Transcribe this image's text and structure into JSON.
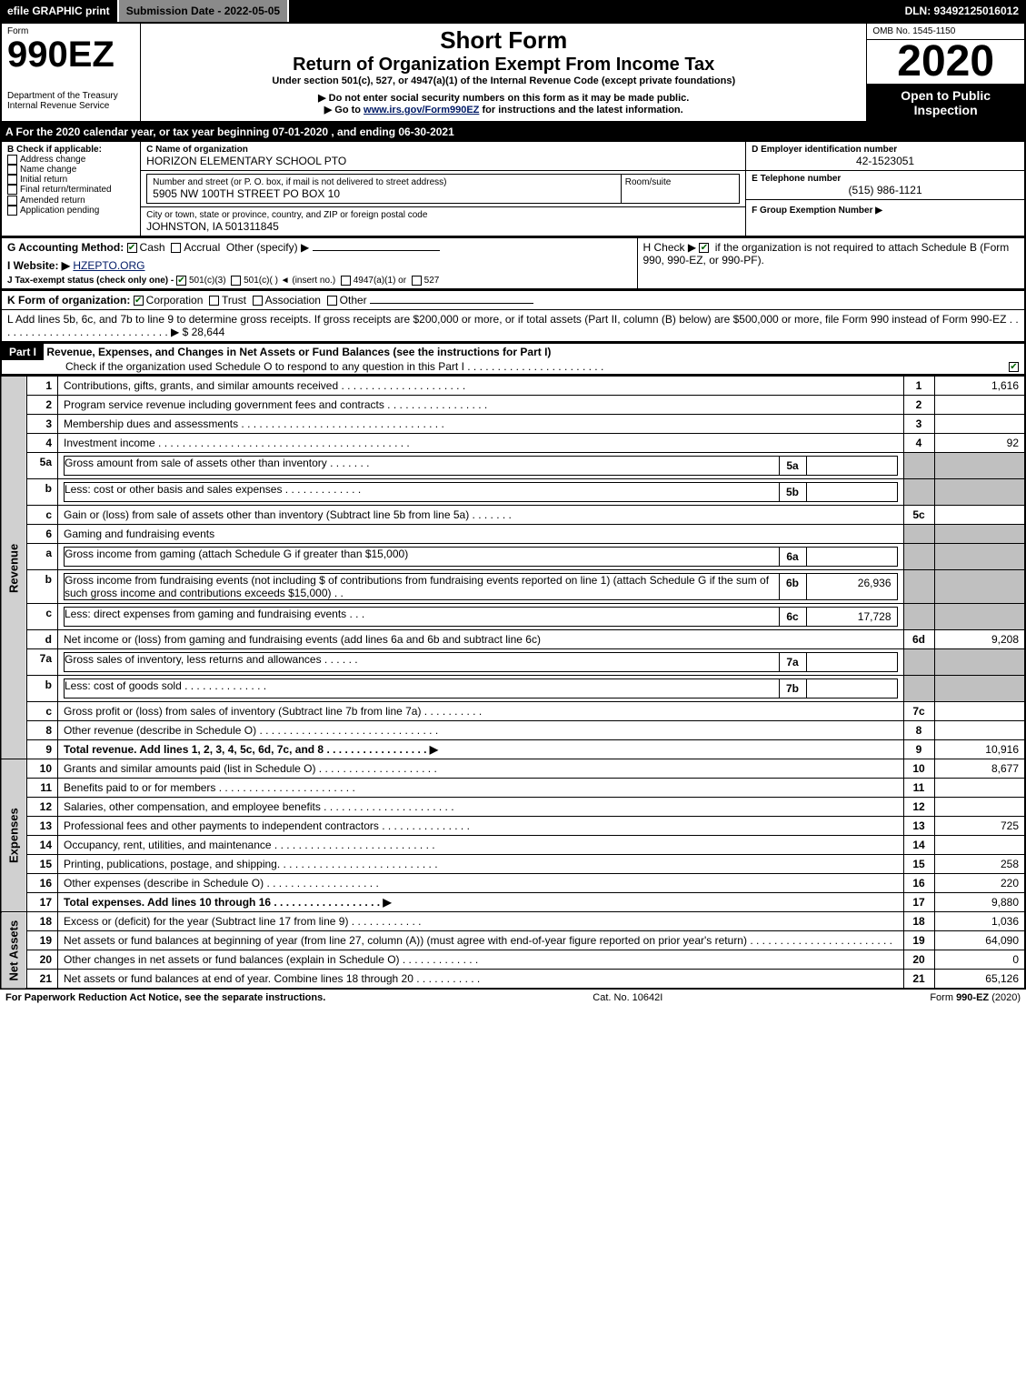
{
  "topbar": {
    "efile": "efile GRAPHIC print",
    "submission": "Submission Date - 2022-05-05",
    "dln": "DLN: 93492125016012"
  },
  "header": {
    "form_word": "Form",
    "form_no": "990EZ",
    "dept": "Department of the Treasury",
    "irs": "Internal Revenue Service",
    "short_form": "Short Form",
    "return_title": "Return of Organization Exempt From Income Tax",
    "section_line": "Under section 501(c), 527, or 4947(a)(1) of the Internal Revenue Code (except private foundations)",
    "ssn_warning": "▶ Do not enter social security numbers on this form as it may be made public.",
    "goto_prefix": "▶ Go to ",
    "goto_link": "www.irs.gov/Form990EZ",
    "goto_suffix": " for instructions and the latest information.",
    "omb": "OMB No. 1545-1150",
    "year": "2020",
    "open1": "Open to Public",
    "open2": "Inspection"
  },
  "period": {
    "a_line": "A For the 2020 calendar year, or tax year beginning 07-01-2020 , and ending 06-30-2021"
  },
  "boxB": {
    "heading": "B Check if applicable:",
    "items": [
      {
        "label": "Address change",
        "checked": false
      },
      {
        "label": "Name change",
        "checked": false
      },
      {
        "label": "Initial return",
        "checked": false
      },
      {
        "label": "Final return/terminated",
        "checked": false
      },
      {
        "label": "Amended return",
        "checked": false
      },
      {
        "label": "Application pending",
        "checked": false
      }
    ]
  },
  "boxC": {
    "c_label": "C Name of organization",
    "c_value": "HORIZON ELEMENTARY SCHOOL PTO",
    "addr_label": "Number and street (or P. O. box, if mail is not delivered to street address)",
    "addr_value": "5905 NW 100TH STREET PO BOX 10",
    "room_label": "Room/suite",
    "city_label": "City or town, state or province, country, and ZIP or foreign postal code",
    "city_value": "JOHNSTON, IA  501311845"
  },
  "boxD": {
    "label": "D Employer identification number",
    "value": "42-1523051"
  },
  "boxE": {
    "label": "E Telephone number",
    "value": "(515) 986-1121"
  },
  "boxF": {
    "label": "F Group Exemption Number  ▶",
    "value": ""
  },
  "lineG": {
    "label": "G Accounting Method:",
    "cash": "Cash",
    "accrual": "Accrual",
    "other": "Other (specify) ▶",
    "cash_checked": true
  },
  "lineH": {
    "prefix": "H  Check ▶ ",
    "suffix": " if the organization is not required to attach Schedule B (Form 990, 990-EZ, or 990-PF).",
    "checked": true
  },
  "lineI": {
    "label": "I Website: ▶",
    "value": "HZEPTO.ORG"
  },
  "lineJ": {
    "label": "J Tax-exempt status (check only one) - ",
    "a": "501(c)(3)",
    "b": "501(c)(  ) ◄ (insert no.)",
    "c": "4947(a)(1) or",
    "d": "527",
    "a_checked": true
  },
  "lineK": {
    "label": "K Form of organization:",
    "corp": "Corporation",
    "trust": "Trust",
    "assoc": "Association",
    "other": "Other",
    "corp_checked": true
  },
  "lineL": {
    "text": "L Add lines 5b, 6c, and 7b to line 9 to determine gross receipts. If gross receipts are $200,000 or more, or if total assets (Part II, column (B) below) are $500,000 or more, file Form 990 instead of Form 990-EZ . . . . . . . . . . . . . . . . . . . . . . . . . . . . . ▶ $",
    "value": "28,644"
  },
  "part1": {
    "label": "Part I",
    "title": "Revenue, Expenses, and Changes in Net Assets or Fund Balances (see the instructions for Part I)",
    "checknote": "Check if the organization used Schedule O to respond to any question in this Part I . . . . . . . . . . . . . . . . . . . . . . .",
    "check_checked": true
  },
  "sections": {
    "revenue_label": "Revenue",
    "expenses_label": "Expenses",
    "net_label": "Net Assets"
  },
  "rows": [
    {
      "sec": "rev",
      "n": "1",
      "desc": "Contributions, gifts, grants, and similar amounts received . . . . . . . . . . . . . . . . . . . . .",
      "box": "1",
      "amt": "1,616"
    },
    {
      "sec": "rev",
      "n": "2",
      "desc": "Program service revenue including government fees and contracts . . . . . . . . . . . . . . . . .",
      "box": "2",
      "amt": ""
    },
    {
      "sec": "rev",
      "n": "3",
      "desc": "Membership dues and assessments . . . . . . . . . . . . . . . . . . . . . . . . . . . . . . . . . .",
      "box": "3",
      "amt": ""
    },
    {
      "sec": "rev",
      "n": "4",
      "desc": "Investment income . . . . . . . . . . . . . . . . . . . . . . . . . . . . . . . . . . . . . . . . . .",
      "box": "4",
      "amt": "92"
    },
    {
      "sec": "rev",
      "n": "5a",
      "desc": "Gross amount from sale of assets other than inventory . . . . . . .",
      "sub": "5a",
      "subamt": "",
      "shade": true
    },
    {
      "sec": "rev",
      "n": "b",
      "desc": "Less: cost or other basis and sales expenses . . . . . . . . . . . . .",
      "sub": "5b",
      "subamt": "",
      "shade": true
    },
    {
      "sec": "rev",
      "n": "c",
      "desc": "Gain or (loss) from sale of assets other than inventory (Subtract line 5b from line 5a) . . . . . . .",
      "box": "5c",
      "amt": ""
    },
    {
      "sec": "rev",
      "n": "6",
      "desc": "Gaming and fundraising events",
      "shade": true,
      "noline": true
    },
    {
      "sec": "rev",
      "n": "a",
      "desc": "Gross income from gaming (attach Schedule G if greater than $15,000)",
      "sub": "6a",
      "subamt": "",
      "shade": true
    },
    {
      "sec": "rev",
      "n": "b",
      "desc": "Gross income from fundraising events (not including $                    of contributions from fundraising events reported on line 1) (attach Schedule G if the sum of such gross income and contributions exceeds $15,000)    .  .",
      "sub": "6b",
      "subamt": "26,936",
      "shade": true
    },
    {
      "sec": "rev",
      "n": "c",
      "desc": "Less: direct expenses from gaming and fundraising events     .  .  .",
      "sub": "6c",
      "subamt": "17,728",
      "shade": true
    },
    {
      "sec": "rev",
      "n": "d",
      "desc": "Net income or (loss) from gaming and fundraising events (add lines 6a and 6b and subtract line 6c)",
      "box": "6d",
      "amt": "9,208"
    },
    {
      "sec": "rev",
      "n": "7a",
      "desc": "Gross sales of inventory, less returns and allowances . . . . . .",
      "sub": "7a",
      "subamt": "",
      "shade": true
    },
    {
      "sec": "rev",
      "n": "b",
      "desc": "Less: cost of goods sold        .   .   .   .   .   .   .   .   .   .   .   .   .   .",
      "sub": "7b",
      "subamt": "",
      "shade": true
    },
    {
      "sec": "rev",
      "n": "c",
      "desc": "Gross profit or (loss) from sales of inventory (Subtract line 7b from line 7a) . . . . . . . . . .",
      "box": "7c",
      "amt": ""
    },
    {
      "sec": "rev",
      "n": "8",
      "desc": "Other revenue (describe in Schedule O) . . . . . . . . . . . . . . . . . . . . . . . . . . . . . .",
      "box": "8",
      "amt": ""
    },
    {
      "sec": "rev",
      "n": "9",
      "desc": "Total revenue. Add lines 1, 2, 3, 4, 5c, 6d, 7c, and 8  .  .  .  .  .  .  .  .  .  .  .  .  .  .  .  .  .  ▶",
      "box": "9",
      "amt": "10,916",
      "bold": true
    },
    {
      "sec": "exp",
      "n": "10",
      "desc": "Grants and similar amounts paid (list in Schedule O) . . . . . . . . . . . . . . . . . . . .",
      "box": "10",
      "amt": "8,677"
    },
    {
      "sec": "exp",
      "n": "11",
      "desc": "Benefits paid to or for members     .   .   .   .   .   .   .   .   .   .   .   .   .   .   .   .   .   .   .   .   .   .   .",
      "box": "11",
      "amt": ""
    },
    {
      "sec": "exp",
      "n": "12",
      "desc": "Salaries, other compensation, and employee benefits . . . . . . . . . . . . . . . . . . . . . .",
      "box": "12",
      "amt": ""
    },
    {
      "sec": "exp",
      "n": "13",
      "desc": "Professional fees and other payments to independent contractors . . . . . . . . . . . . . . .",
      "box": "13",
      "amt": "725"
    },
    {
      "sec": "exp",
      "n": "14",
      "desc": "Occupancy, rent, utilities, and maintenance . . . . . . . . . . . . . . . . . . . . . . . . . . .",
      "box": "14",
      "amt": ""
    },
    {
      "sec": "exp",
      "n": "15",
      "desc": "Printing, publications, postage, and shipping. . . . . . . . . . . . . . . . . . . . . . . . . . .",
      "box": "15",
      "amt": "258"
    },
    {
      "sec": "exp",
      "n": "16",
      "desc": "Other expenses (describe in Schedule O)     .   .   .   .   .   .   .   .   .   .   .   .   .   .   .   .   .   .   .",
      "box": "16",
      "amt": "220"
    },
    {
      "sec": "exp",
      "n": "17",
      "desc": "Total expenses. Add lines 10 through 16    .   .   .   .   .   .   .   .   .   .   .   .   .   .   .   .   .   .  ▶",
      "box": "17",
      "amt": "9,880",
      "bold": true
    },
    {
      "sec": "net",
      "n": "18",
      "desc": "Excess or (deficit) for the year (Subtract line 17 from line 9)        .   .   .   .   .   .   .   .   .   .   .   .",
      "box": "18",
      "amt": "1,036"
    },
    {
      "sec": "net",
      "n": "19",
      "desc": "Net assets or fund balances at beginning of year (from line 27, column (A)) (must agree with end-of-year figure reported on prior year's return) . . . . . . . . . . . . . . . . . . . . . . . .",
      "box": "19",
      "amt": "64,090"
    },
    {
      "sec": "net",
      "n": "20",
      "desc": "Other changes in net assets or fund balances (explain in Schedule O) . . . . . . . . . . . . .",
      "box": "20",
      "amt": "0"
    },
    {
      "sec": "net",
      "n": "21",
      "desc": "Net assets or fund balances at end of year. Combine lines 18 through 20 . . . . . . . . . . .",
      "box": "21",
      "amt": "65,126"
    }
  ],
  "footer": {
    "left": "For Paperwork Reduction Act Notice, see the separate instructions.",
    "center": "Cat. No. 10642I",
    "right_prefix": "Form ",
    "right_form": "990-EZ",
    "right_suffix": " (2020)"
  },
  "colors": {
    "black": "#000000",
    "grey": "#8a8a8a",
    "lightgrey": "#cfcfcf",
    "shade": "#c0c0c0",
    "link": "#001a66",
    "check": "#006400"
  }
}
